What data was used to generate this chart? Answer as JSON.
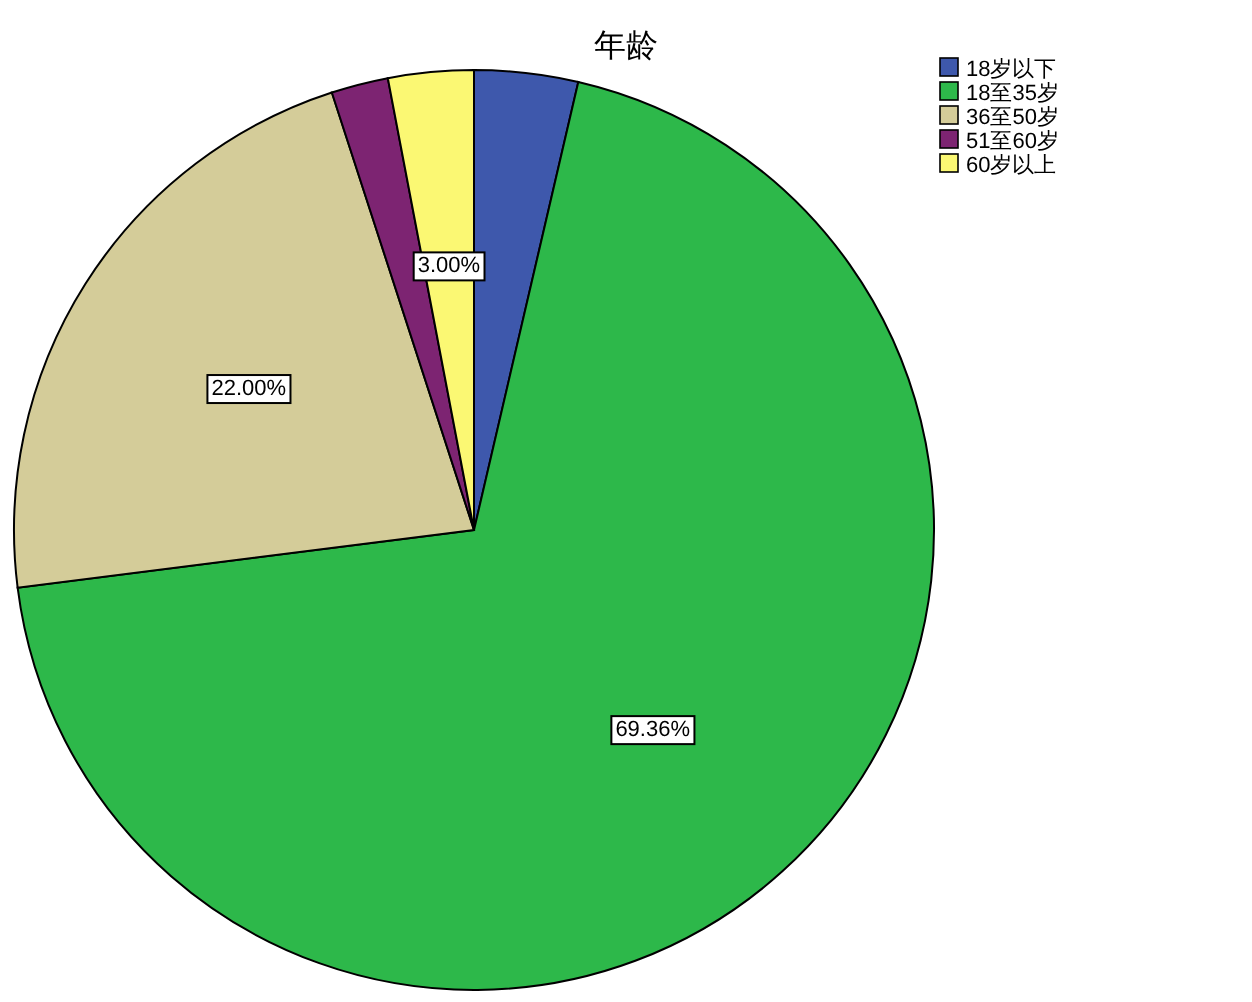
{
  "chart_data": {
    "type": "pie",
    "title": "年龄",
    "categories": [
      "18岁以下",
      "18至35岁",
      "36至50岁",
      "51至60岁",
      "60岁以上"
    ],
    "values": [
      3.64,
      69.36,
      22.0,
      2.0,
      3.0
    ],
    "colors": [
      "#3e58ac",
      "#2db84a",
      "#d4cc99",
      "#7d2472",
      "#fbf873"
    ],
    "value_labels": [
      null,
      "69.36%",
      "22.00%",
      null,
      "3.00%"
    ],
    "legend": "top right"
  }
}
